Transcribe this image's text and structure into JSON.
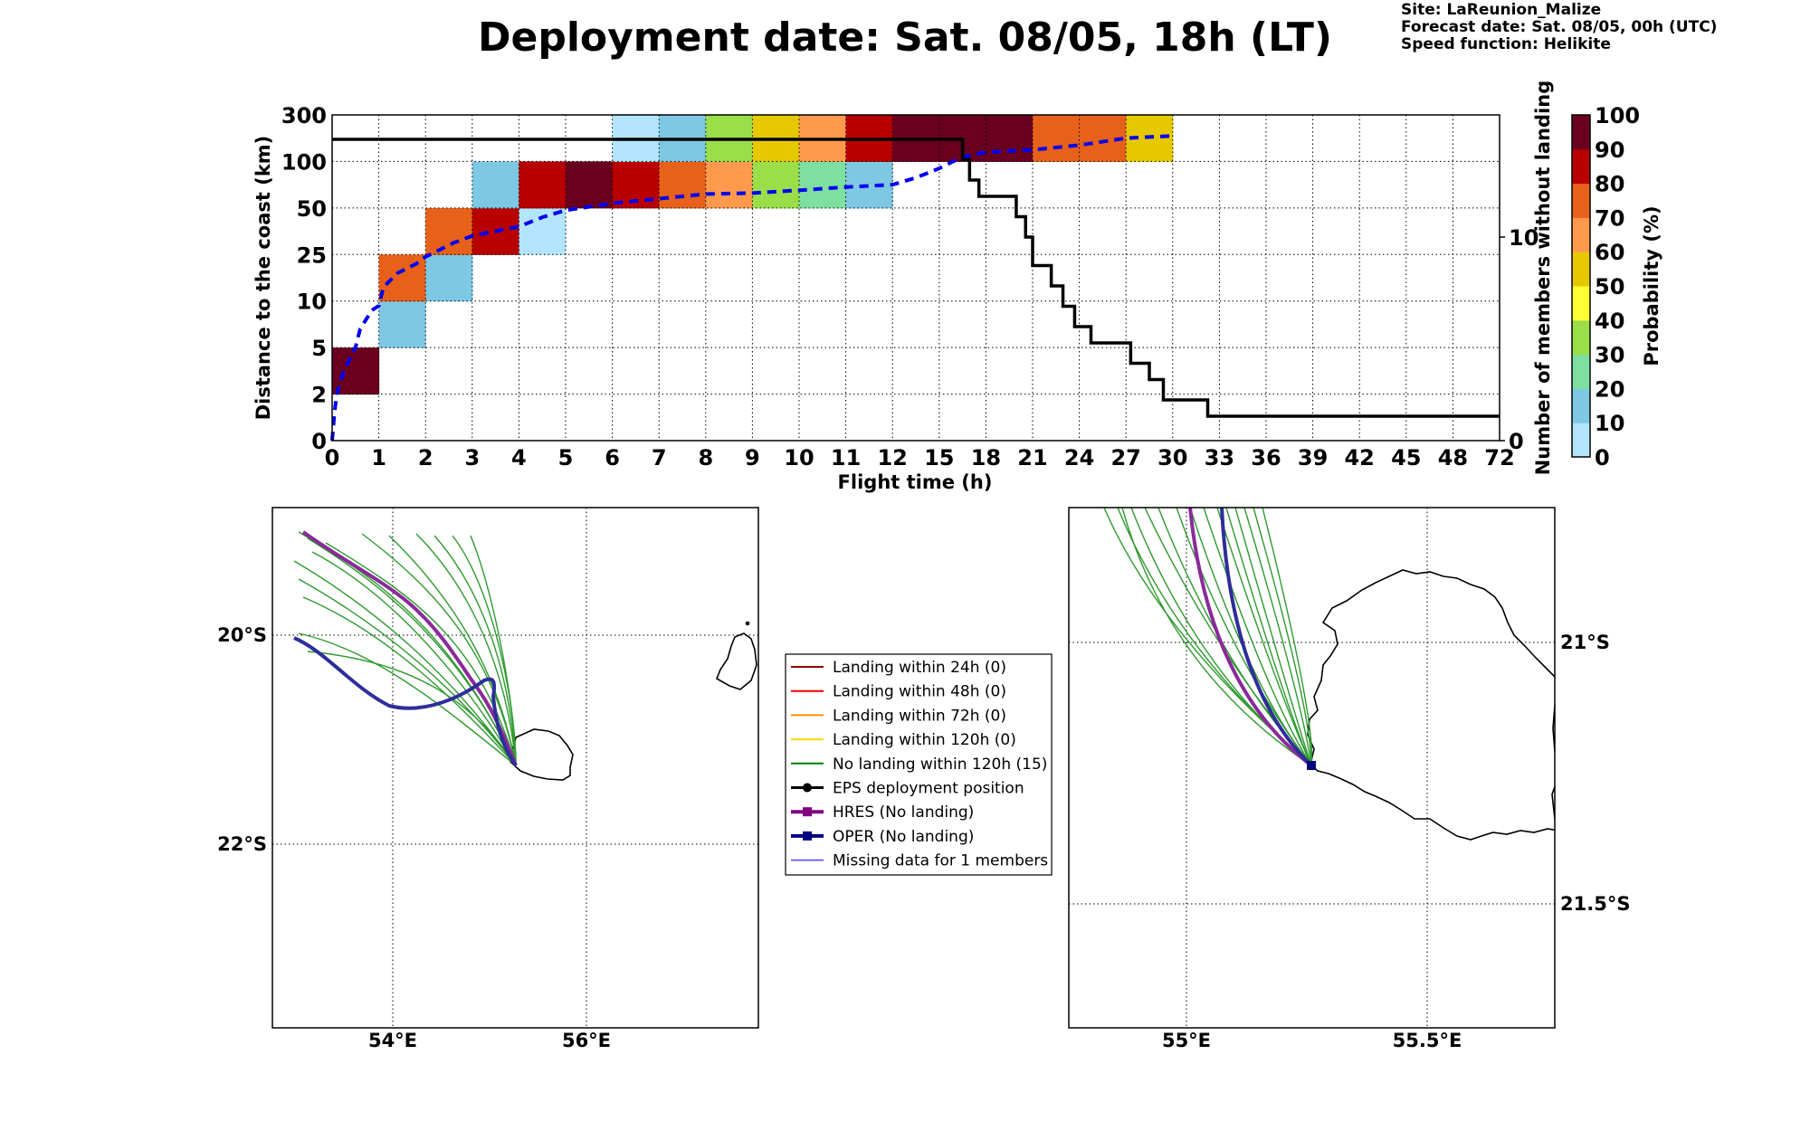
{
  "header": {
    "title": "Deployment date: Sat. 08/05, 18h (LT)",
    "site": "Site: LaReunion_Malize",
    "forecast_date": "Forecast date: Sat. 08/05, 00h (UTC)",
    "speed_function": "Speed function: Helikite"
  },
  "chart_data": {
    "type": "heatmap",
    "xlabel": "Flight time (h)",
    "ylabel": "Distance to the coast (km)",
    "ylabel_right": "Number of members without landing",
    "colorbar_label": "Probability (%)",
    "x_ticks": [
      "0",
      "1",
      "2",
      "3",
      "4",
      "5",
      "6",
      "7",
      "8",
      "9",
      "10",
      "11",
      "12",
      "15",
      "18",
      "21",
      "24",
      "27",
      "30",
      "33",
      "36",
      "39",
      "42",
      "45",
      "48",
      "72"
    ],
    "y_ticks": [
      "0",
      "2",
      "5",
      "10",
      "25",
      "50",
      "100",
      "300"
    ],
    "right_ticks": [
      {
        "value": 0,
        "label": "0"
      },
      {
        "value": 10,
        "label": "10"
      }
    ],
    "right_range": [
      0,
      16
    ],
    "colorbar": {
      "ticks": [
        "0",
        "10",
        "20",
        "30",
        "40",
        "50",
        "60",
        "70",
        "80",
        "90",
        "100"
      ],
      "colors": [
        "#b3e5fc",
        "#7ec8e3",
        "#7ee0a0",
        "#9ade4a",
        "#ffff33",
        "#e6c800",
        "#ff9a4d",
        "#e8611a",
        "#b80000",
        "#6a0020"
      ]
    },
    "cells": [
      {
        "x": 0,
        "y": 1,
        "p": 95
      },
      {
        "x": 1,
        "y": 2,
        "p": 15
      },
      {
        "x": 1,
        "y": 3,
        "p": 75
      },
      {
        "x": 2,
        "y": 3,
        "p": 15
      },
      {
        "x": 2,
        "y": 4,
        "p": 75
      },
      {
        "x": 3,
        "y": 4,
        "p": 85
      },
      {
        "x": 3,
        "y": 5,
        "p": 15
      },
      {
        "x": 4,
        "y": 4,
        "p": 5
      },
      {
        "x": 4,
        "y": 5,
        "p": 85
      },
      {
        "x": 5,
        "y": 5,
        "p": 95
      },
      {
        "x": 6,
        "y": 5,
        "p": 85
      },
      {
        "x": 6,
        "y": 6,
        "p": 5
      },
      {
        "x": 7,
        "y": 5,
        "p": 75
      },
      {
        "x": 7,
        "y": 6,
        "p": 15
      },
      {
        "x": 8,
        "y": 5,
        "p": 65
      },
      {
        "x": 8,
        "y": 6,
        "p": 35
      },
      {
        "x": 9,
        "y": 5,
        "p": 35
      },
      {
        "x": 9,
        "y": 6,
        "p": 55
      },
      {
        "x": 10,
        "y": 5,
        "p": 25
      },
      {
        "x": 10,
        "y": 6,
        "p": 65
      },
      {
        "x": 11,
        "y": 5,
        "p": 15
      },
      {
        "x": 11,
        "y": 6,
        "p": 85
      },
      {
        "x": 12,
        "y": 6,
        "p": 95
      },
      {
        "x": 13,
        "y": 6,
        "p": 95
      },
      {
        "x": 14,
        "y": 6,
        "p": 95
      },
      {
        "x": 15,
        "y": 6,
        "p": 75
      },
      {
        "x": 16,
        "y": 6,
        "p": 75
      },
      {
        "x": 17,
        "y": 6,
        "p": 55
      }
    ],
    "series": [
      {
        "name": "",
        "axis": "left",
        "style": "dashed",
        "color": "#0000ee",
        "points": [
          [
            0,
            0
          ],
          [
            0.05,
            0.6
          ],
          [
            0.1,
            1.0
          ],
          [
            0.25,
            1.5
          ],
          [
            0.5,
            2.0
          ],
          [
            0.6,
            2.4
          ],
          [
            0.85,
            2.8
          ],
          [
            1.0,
            2.9
          ],
          [
            1.1,
            3.3
          ],
          [
            1.4,
            3.6
          ],
          [
            1.8,
            3.8
          ],
          [
            2.0,
            3.95
          ],
          [
            2.6,
            4.25
          ],
          [
            3.0,
            4.4
          ],
          [
            3.5,
            4.5
          ],
          [
            4.0,
            4.6
          ],
          [
            4.5,
            4.8
          ],
          [
            5.0,
            4.95
          ],
          [
            6.0,
            5.1
          ],
          [
            7.0,
            5.2
          ],
          [
            8.0,
            5.3
          ],
          [
            9.0,
            5.32
          ],
          [
            10.0,
            5.38
          ],
          [
            11.0,
            5.45
          ],
          [
            12.0,
            5.5
          ],
          [
            12.5,
            5.65
          ],
          [
            13.0,
            5.85
          ],
          [
            13.5,
            6.1
          ],
          [
            14.0,
            6.2
          ],
          [
            15.0,
            6.25
          ],
          [
            16.0,
            6.35
          ],
          [
            17.0,
            6.5
          ],
          [
            18.0,
            6.55
          ]
        ]
      },
      {
        "name": "",
        "axis": "right",
        "style": "step",
        "color": "#000000",
        "points": [
          [
            0,
            14.8
          ],
          [
            13.5,
            14.8
          ],
          [
            13.5,
            13.8
          ],
          [
            13.65,
            13.8
          ],
          [
            13.65,
            12.8
          ],
          [
            13.85,
            12.8
          ],
          [
            13.85,
            12.0
          ],
          [
            14.65,
            12.0
          ],
          [
            14.65,
            11.0
          ],
          [
            14.85,
            11.0
          ],
          [
            14.85,
            10.0
          ],
          [
            15.0,
            10.0
          ],
          [
            15.0,
            8.6
          ],
          [
            15.4,
            8.6
          ],
          [
            15.4,
            7.6
          ],
          [
            15.65,
            7.6
          ],
          [
            15.65,
            6.6
          ],
          [
            15.9,
            6.6
          ],
          [
            15.9,
            5.6
          ],
          [
            16.25,
            5.6
          ],
          [
            16.25,
            4.8
          ],
          [
            17.1,
            4.8
          ],
          [
            17.1,
            3.8
          ],
          [
            17.5,
            3.8
          ],
          [
            17.5,
            3.0
          ],
          [
            17.8,
            3.0
          ],
          [
            17.8,
            2.0
          ],
          [
            18.75,
            2.0
          ],
          [
            18.75,
            1.2
          ],
          [
            25,
            1.2
          ]
        ]
      }
    ]
  },
  "map_left": {
    "x_ticks": [
      "54°E",
      "56°E"
    ],
    "y_ticks": [
      "20°S",
      "22°S"
    ]
  },
  "map_right": {
    "x_ticks": [
      "55°E",
      "55.5°E"
    ],
    "y_ticks": [
      "21°S",
      "21.5°S"
    ]
  },
  "legend": {
    "entries": [
      {
        "label": "Landing within 24h (0)",
        "color": "#8b0000",
        "style": "line"
      },
      {
        "label": "Landing within 48h (0)",
        "color": "#ff0000",
        "style": "line"
      },
      {
        "label": "Landing within 72h (0)",
        "color": "#ff8c00",
        "style": "line"
      },
      {
        "label": "Landing within 120h (0)",
        "color": "#ffd700",
        "style": "line"
      },
      {
        "label": "No landing within 120h (15)",
        "color": "#008000",
        "style": "line"
      },
      {
        "label": "EPS deployment position",
        "color": "#000000",
        "style": "dot"
      },
      {
        "label": "HRES (No landing)",
        "color": "#800080",
        "style": "square"
      },
      {
        "label": "OPER (No landing)",
        "color": "#000080",
        "style": "square"
      },
      {
        "label": "Missing data for 1 members",
        "color": "#4444ff",
        "style": "thin"
      }
    ]
  },
  "colors": {
    "eps_members": "#2e9a2e",
    "hres": "#8a2a9a",
    "oper": "#2e2e9a",
    "coast": "#000000"
  }
}
